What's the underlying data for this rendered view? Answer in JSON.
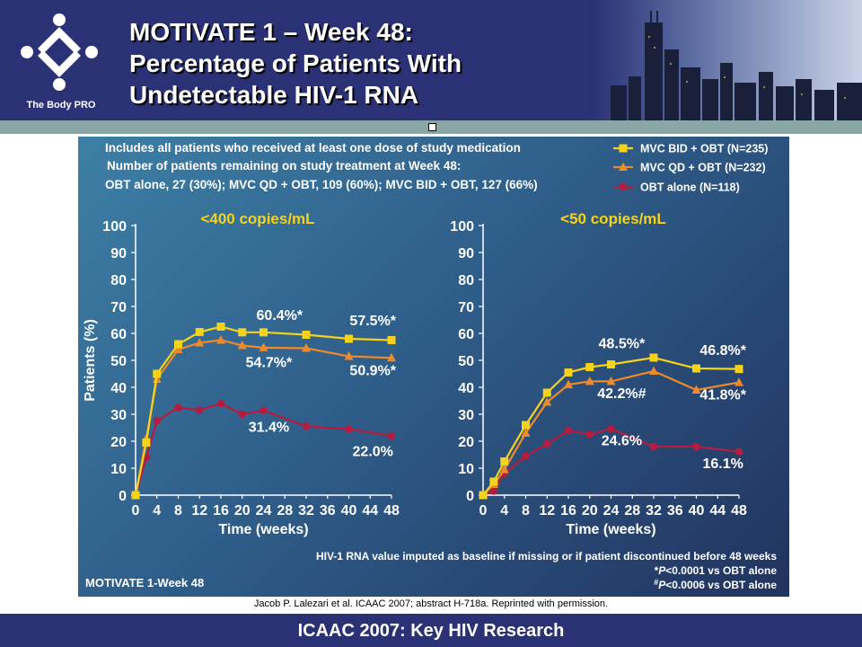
{
  "header": {
    "logo_caption": "The Body PRO",
    "title_lines": [
      "MOTIVATE 1 – Week 48:",
      "Percentage of Patients With",
      "Undetectable HIV-1 RNA"
    ]
  },
  "notes": {
    "line1": "Includes all patients who received at least one dose of study medication",
    "line2": "Number of patients remaining on study treatment at Week 48:",
    "line3": "OBT alone, 27 (30%); MVC QD + OBT, 109 (60%); MVC BID + OBT, 127 (66%)"
  },
  "footnotes": {
    "imputation": "HIV-1 RNA value imputed as baseline if missing or  if patient discontinued before 48 weeks",
    "p1_mark": "*",
    "p1_text": "<0.0001 vs OBT alone",
    "p2_mark": "#",
    "p2_text": "<0.0006 vs OBT alone",
    "p_letter": "P",
    "study_label": "MOTIVATE 1-Week 48"
  },
  "citation": "Jacob P. Lalezari et al. ICAAC 2007; abstract H-718a. Reprinted with permission.",
  "footer": {
    "text": "ICAAC 2007: Key HIV Research"
  },
  "colors": {
    "bid": "#f5d31b",
    "qd": "#ee8a2b",
    "obt": "#b51c3f",
    "heading": "#f5d31b",
    "text": "#ffffff",
    "header_bg": "#2b3175",
    "band": "#8aa6a6"
  },
  "chart_data": [
    {
      "type": "line",
      "title": "<400 copies/mL",
      "xlabel": "Time (weeks)",
      "ylabel": "Patients (%)",
      "xlim": [
        0,
        48
      ],
      "ylim": [
        0,
        100
      ],
      "xticks": [
        0,
        4,
        8,
        12,
        16,
        20,
        24,
        28,
        32,
        36,
        40,
        44,
        48
      ],
      "yticks": [
        0,
        10,
        20,
        30,
        40,
        50,
        60,
        70,
        80,
        90,
        100
      ],
      "legend_position": "top-right",
      "series": [
        {
          "name": "MVC BID + OBT (N=235)",
          "color_key": "bid",
          "marker": "square",
          "x": [
            0,
            2,
            4,
            8,
            12,
            16,
            20,
            24,
            32,
            40,
            48
          ],
          "y": [
            0,
            19.5,
            45,
            56,
            60.5,
            62.5,
            60.4,
            60.4,
            59.5,
            58,
            57.5
          ]
        },
        {
          "name": "MVC QD + OBT (N=232)",
          "color_key": "qd",
          "marker": "triangle",
          "x": [
            0,
            2,
            4,
            8,
            12,
            16,
            20,
            24,
            32,
            40,
            48
          ],
          "y": [
            0,
            21,
            43,
            54,
            56.5,
            57.5,
            55.5,
            54.7,
            54.5,
            51.5,
            50.9
          ]
        },
        {
          "name": "OBT alone (N=118)",
          "color_key": "obt",
          "marker": "circle",
          "x": [
            0,
            2,
            4,
            8,
            12,
            16,
            20,
            24,
            32,
            40,
            48
          ],
          "y": [
            0,
            14,
            27.5,
            32.5,
            31.5,
            34,
            30,
            31.4,
            25.5,
            24.5,
            22
          ]
        }
      ],
      "annotations": [
        {
          "text": "60.4%*",
          "x": 27,
          "y": 65,
          "color_key": "text"
        },
        {
          "text": "57.5%*",
          "x": 44.5,
          "y": 63,
          "color_key": "text"
        },
        {
          "text": "54.7%*",
          "x": 25,
          "y": 47.5,
          "color_key": "text"
        },
        {
          "text": "50.9%*",
          "x": 44.5,
          "y": 44.5,
          "color_key": "text"
        },
        {
          "text": "31.4%",
          "x": 25,
          "y": 23.5,
          "color_key": "text"
        },
        {
          "text": "22.0%",
          "x": 44.5,
          "y": 14.5,
          "color_key": "text"
        }
      ]
    },
    {
      "type": "line",
      "title": "<50 copies/mL",
      "xlabel": "Time (weeks)",
      "ylabel": "",
      "xlim": [
        0,
        48
      ],
      "ylim": [
        0,
        100
      ],
      "xticks": [
        0,
        4,
        8,
        12,
        16,
        20,
        24,
        28,
        32,
        36,
        40,
        44,
        48
      ],
      "yticks": [
        0,
        10,
        20,
        30,
        40,
        50,
        60,
        70,
        80,
        90,
        100
      ],
      "series": [
        {
          "name": "MVC BID + OBT (N=235)",
          "color_key": "bid",
          "marker": "square",
          "x": [
            0,
            2,
            4,
            8,
            12,
            16,
            20,
            24,
            32,
            40,
            48
          ],
          "y": [
            0,
            5,
            12.5,
            26,
            38,
            45.5,
            47.5,
            48.5,
            51,
            47,
            46.8
          ]
        },
        {
          "name": "MVC QD + OBT (N=232)",
          "color_key": "qd",
          "marker": "triangle",
          "x": [
            0,
            2,
            4,
            8,
            12,
            16,
            20,
            24,
            32,
            40,
            48
          ],
          "y": [
            0,
            4,
            9.5,
            23,
            34.5,
            41,
            42.2,
            42.2,
            46,
            39,
            41.8
          ]
        },
        {
          "name": "OBT alone (N=118)",
          "color_key": "obt",
          "marker": "circle",
          "x": [
            0,
            2,
            4,
            8,
            12,
            16,
            20,
            24,
            32,
            40,
            48
          ],
          "y": [
            0,
            1.5,
            8,
            14.5,
            19,
            24,
            22.5,
            24.6,
            18,
            18,
            16.1
          ]
        }
      ],
      "annotations": [
        {
          "text": "48.5%*",
          "x": 26,
          "y": 54.5,
          "color_key": "text"
        },
        {
          "text": "46.8%*",
          "x": 45,
          "y": 52,
          "color_key": "text"
        },
        {
          "text": "42.2%#",
          "x": 26,
          "y": 36,
          "color_key": "text"
        },
        {
          "text": "41.8%*",
          "x": 45,
          "y": 35.5,
          "color_key": "text"
        },
        {
          "text": "24.6%",
          "x": 26,
          "y": 18.5,
          "color_key": "text"
        },
        {
          "text": "16.1%",
          "x": 45,
          "y": 10,
          "color_key": "text"
        }
      ]
    }
  ]
}
